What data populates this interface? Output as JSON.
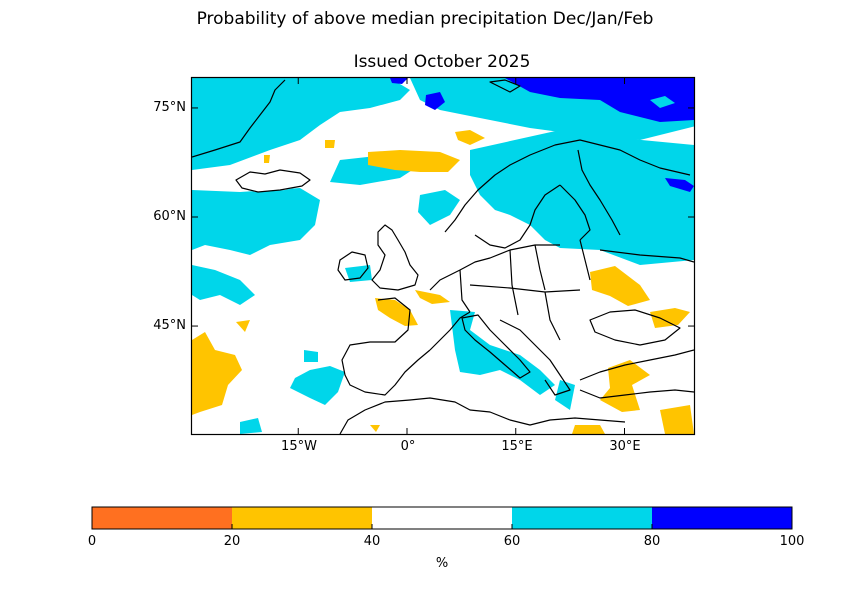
{
  "chart_data": {
    "type": "heatmap",
    "subtype": "filled-contour-map",
    "title": "Probability of above median precipitation Dec/Jan/Feb",
    "subtitle": "Issued October 2025",
    "region": "Europe and North Atlantic",
    "lon_range": [
      -30,
      40
    ],
    "lat_range": [
      30,
      79
    ],
    "lat_ticks": [
      {
        "value": 75,
        "label": "75°N"
      },
      {
        "value": 60,
        "label": "60°N"
      },
      {
        "value": 45,
        "label": "45°N"
      }
    ],
    "lon_ticks": [
      {
        "value": -15,
        "label": "15°W"
      },
      {
        "value": 0,
        "label": "0°"
      },
      {
        "value": 15,
        "label": "15°E"
      },
      {
        "value": 30,
        "label": "30°E"
      }
    ],
    "colorbar": {
      "label": "%",
      "ticks": [
        "0",
        "20",
        "40",
        "60",
        "80",
        "100"
      ],
      "bins": [
        {
          "range": [
            0,
            20
          ],
          "color": "#ff7020"
        },
        {
          "range": [
            20,
            40
          ],
          "color": "#ffc400"
        },
        {
          "range": [
            40,
            60
          ],
          "color": "#ffffff"
        },
        {
          "range": [
            60,
            80
          ],
          "color": "#00d6ea"
        },
        {
          "range": [
            80,
            100
          ],
          "color": "#0000ff"
        }
      ]
    },
    "regions": [
      {
        "name": "Greenland Sea / Svalbard area",
        "category": "60-80"
      },
      {
        "name": "Barents Sea / Arctic north",
        "category": "80-100"
      },
      {
        "name": "Scandinavia and Finland",
        "category": "60-80"
      },
      {
        "name": "North Atlantic south of Iceland",
        "category": "60-80"
      },
      {
        "name": "Norwegian Sea band",
        "category": "20-40"
      },
      {
        "name": "Western France",
        "category": "20-40"
      },
      {
        "name": "Italy and Adriatic",
        "category": "60-80"
      },
      {
        "name": "Ukraine / Black Sea north",
        "category": "20-40"
      },
      {
        "name": "Turkey / Eastern Mediterranean",
        "category": "20-40"
      },
      {
        "name": "Azores region",
        "category": "20-40"
      },
      {
        "name": "Atlantic west of Iberia",
        "category": "60-80"
      }
    ]
  }
}
